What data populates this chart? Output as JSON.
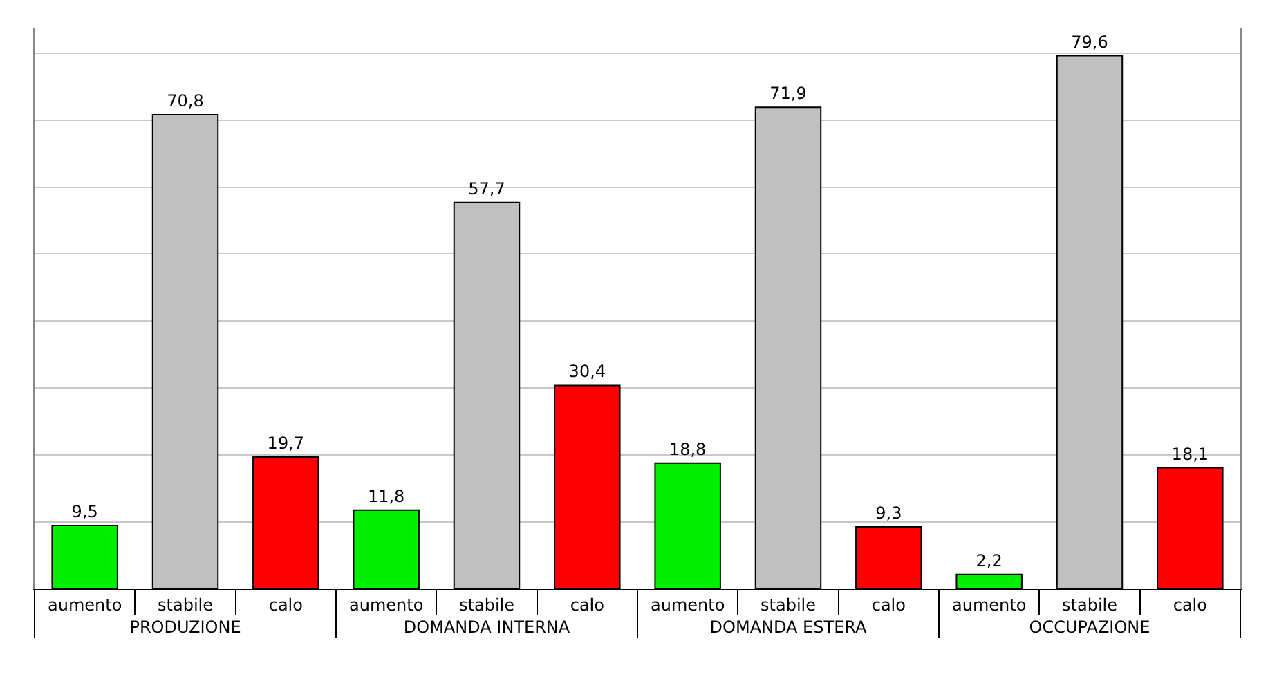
{
  "chart_data": {
    "type": "bar",
    "categories": [
      "aumento",
      "stabile",
      "calo",
      "aumento",
      "stabile",
      "calo",
      "aumento",
      "stabile",
      "calo",
      "aumento",
      "stabile",
      "calo"
    ],
    "values": [
      9.5,
      70.8,
      19.7,
      11.8,
      57.7,
      30.4,
      18.8,
      71.9,
      9.3,
      2.2,
      79.6,
      18.1
    ],
    "colors": [
      "#00ee00",
      "#c0c0c0",
      "#ff0000",
      "#00ee00",
      "#c0c0c0",
      "#ff0000",
      "#00ee00",
      "#c0c0c0",
      "#ff0000",
      "#00ee00",
      "#c0c0c0",
      "#ff0000"
    ],
    "annotations": [
      "PRODUZIONE",
      "DOMANDA INTERNA",
      "DOMANDA ESTERA",
      "OCCUPAZIONE"
    ],
    "value_labels": [
      "9,5",
      "70,8",
      "19,7",
      "11,8",
      "57,7",
      "30,4",
      "18,8",
      "71,9",
      "9,3",
      "2,2",
      "79,6",
      "18,1"
    ],
    "tick_labels": "x",
    "grid": "y"
  }
}
